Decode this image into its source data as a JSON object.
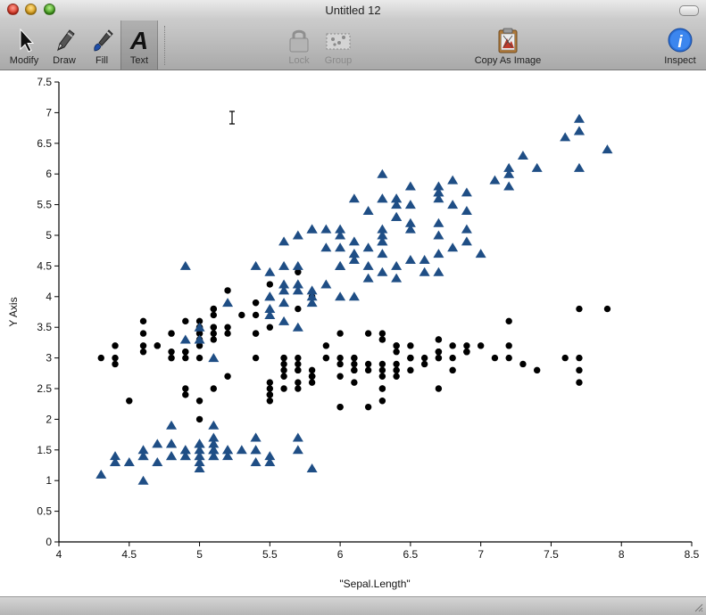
{
  "window": {
    "title": "Untitled 12"
  },
  "toolbar": {
    "modify_label": "Modify",
    "draw_label": "Draw",
    "fill_label": "Fill",
    "text_label": "Text",
    "lock_label": "Lock",
    "group_label": "Group",
    "copy_label": "Copy As Image",
    "inspect_label": "Inspect",
    "selected_tool": "Text"
  },
  "colors": {
    "series_triangle": "#1f4e85",
    "series_circle": "#000000"
  },
  "chart_data": {
    "type": "scatter",
    "xlabel": "\"Sepal.Length\"",
    "ylabel": "Y Axis",
    "xlim": [
      4,
      8.5
    ],
    "ylim": [
      0,
      7.5
    ],
    "xticks": [
      "4",
      "4.5",
      "5",
      "5.5",
      "6",
      "6.5",
      "7",
      "7.5",
      "8",
      "8.5"
    ],
    "yticks": [
      "0",
      "0.5",
      "1",
      "1.5",
      "2",
      "2.5",
      "3",
      "3.5",
      "4",
      "4.5",
      "5",
      "5.5",
      "6",
      "6.5",
      "7",
      "7.5"
    ],
    "grid": false,
    "series": [
      {
        "marker": "circle",
        "color": "#000000",
        "points": [
          [
            5.1,
            3.5
          ],
          [
            4.9,
            3.0
          ],
          [
            4.7,
            3.2
          ],
          [
            4.6,
            3.1
          ],
          [
            5.0,
            3.6
          ],
          [
            5.4,
            3.9
          ],
          [
            4.6,
            3.4
          ],
          [
            5.0,
            3.4
          ],
          [
            4.4,
            2.9
          ],
          [
            4.9,
            3.1
          ],
          [
            5.4,
            3.7
          ],
          [
            4.8,
            3.4
          ],
          [
            4.8,
            3.0
          ],
          [
            4.3,
            3.0
          ],
          [
            5.8,
            4.0
          ],
          [
            5.7,
            4.4
          ],
          [
            5.4,
            3.9
          ],
          [
            5.1,
            3.5
          ],
          [
            5.7,
            3.8
          ],
          [
            5.1,
            3.8
          ],
          [
            5.4,
            3.4
          ],
          [
            5.1,
            3.7
          ],
          [
            4.6,
            3.6
          ],
          [
            5.1,
            3.3
          ],
          [
            4.8,
            3.4
          ],
          [
            5.0,
            3.0
          ],
          [
            5.0,
            3.4
          ],
          [
            5.2,
            3.5
          ],
          [
            5.2,
            3.4
          ],
          [
            4.7,
            3.2
          ],
          [
            4.8,
            3.1
          ],
          [
            5.4,
            3.4
          ],
          [
            5.2,
            4.1
          ],
          [
            5.5,
            4.2
          ],
          [
            4.9,
            3.1
          ],
          [
            5.0,
            3.2
          ],
          [
            5.5,
            3.5
          ],
          [
            4.9,
            3.6
          ],
          [
            4.4,
            3.0
          ],
          [
            5.1,
            3.4
          ],
          [
            5.0,
            3.5
          ],
          [
            4.5,
            2.3
          ],
          [
            4.4,
            3.2
          ],
          [
            5.0,
            3.5
          ],
          [
            5.1,
            3.8
          ],
          [
            4.8,
            3.0
          ],
          [
            5.1,
            3.8
          ],
          [
            4.6,
            3.2
          ],
          [
            5.3,
            3.7
          ],
          [
            5.0,
            3.3
          ],
          [
            7.0,
            3.2
          ],
          [
            6.4,
            3.2
          ],
          [
            6.9,
            3.1
          ],
          [
            5.5,
            2.3
          ],
          [
            6.5,
            2.8
          ],
          [
            5.7,
            2.8
          ],
          [
            6.3,
            3.3
          ],
          [
            4.9,
            2.4
          ],
          [
            6.6,
            2.9
          ],
          [
            5.2,
            2.7
          ],
          [
            5.0,
            2.0
          ],
          [
            5.9,
            3.0
          ],
          [
            6.0,
            2.2
          ],
          [
            6.1,
            2.9
          ],
          [
            5.6,
            2.9
          ],
          [
            6.7,
            3.1
          ],
          [
            5.6,
            3.0
          ],
          [
            5.8,
            2.7
          ],
          [
            6.2,
            2.2
          ],
          [
            5.6,
            2.5
          ],
          [
            5.9,
            3.2
          ],
          [
            6.1,
            2.8
          ],
          [
            6.3,
            2.5
          ],
          [
            6.1,
            2.8
          ],
          [
            6.4,
            2.9
          ],
          [
            6.6,
            3.0
          ],
          [
            6.8,
            2.8
          ],
          [
            6.7,
            3.0
          ],
          [
            6.0,
            2.9
          ],
          [
            5.7,
            2.6
          ],
          [
            5.5,
            2.4
          ],
          [
            5.5,
            2.4
          ],
          [
            5.8,
            2.7
          ],
          [
            6.0,
            2.7
          ],
          [
            5.4,
            3.0
          ],
          [
            6.0,
            3.4
          ],
          [
            6.7,
            3.1
          ],
          [
            6.3,
            2.3
          ],
          [
            5.6,
            3.0
          ],
          [
            5.5,
            2.5
          ],
          [
            5.5,
            2.6
          ],
          [
            6.1,
            3.0
          ],
          [
            5.8,
            2.6
          ],
          [
            5.0,
            2.3
          ],
          [
            5.6,
            2.7
          ],
          [
            5.7,
            3.0
          ],
          [
            5.7,
            2.9
          ],
          [
            6.2,
            2.9
          ],
          [
            5.1,
            2.5
          ],
          [
            5.7,
            2.8
          ],
          [
            6.3,
            3.3
          ],
          [
            5.8,
            2.7
          ],
          [
            7.1,
            3.0
          ],
          [
            6.3,
            2.9
          ],
          [
            6.5,
            3.0
          ],
          [
            7.6,
            3.0
          ],
          [
            4.9,
            2.5
          ],
          [
            7.3,
            2.9
          ],
          [
            6.7,
            2.5
          ],
          [
            7.2,
            3.6
          ],
          [
            6.5,
            3.2
          ],
          [
            6.4,
            2.7
          ],
          [
            6.8,
            3.0
          ],
          [
            5.7,
            2.5
          ],
          [
            5.8,
            2.8
          ],
          [
            6.4,
            3.2
          ],
          [
            6.5,
            3.0
          ],
          [
            7.7,
            3.8
          ],
          [
            7.7,
            2.6
          ],
          [
            6.0,
            2.2
          ],
          [
            6.9,
            3.2
          ],
          [
            5.6,
            2.8
          ],
          [
            7.7,
            2.8
          ],
          [
            6.3,
            2.7
          ],
          [
            6.7,
            3.3
          ],
          [
            7.2,
            3.2
          ],
          [
            6.2,
            2.8
          ],
          [
            6.1,
            3.0
          ],
          [
            6.4,
            2.8
          ],
          [
            7.2,
            3.0
          ],
          [
            7.4,
            2.8
          ],
          [
            7.9,
            3.8
          ],
          [
            6.4,
            2.8
          ],
          [
            6.3,
            2.8
          ],
          [
            6.1,
            2.6
          ],
          [
            7.7,
            3.0
          ],
          [
            6.3,
            3.4
          ],
          [
            6.4,
            3.1
          ],
          [
            6.0,
            3.0
          ],
          [
            6.9,
            3.1
          ],
          [
            6.7,
            3.1
          ],
          [
            6.9,
            3.1
          ],
          [
            5.8,
            2.7
          ],
          [
            6.8,
            3.2
          ],
          [
            6.7,
            3.3
          ],
          [
            6.7,
            3.0
          ],
          [
            6.3,
            2.5
          ],
          [
            6.5,
            3.0
          ],
          [
            6.2,
            3.4
          ],
          [
            5.9,
            3.0
          ]
        ]
      },
      {
        "marker": "triangle",
        "color": "#1f4e85",
        "points": [
          [
            5.1,
            1.4
          ],
          [
            4.9,
            1.4
          ],
          [
            4.7,
            1.3
          ],
          [
            4.6,
            1.5
          ],
          [
            5.0,
            1.4
          ],
          [
            5.4,
            1.7
          ],
          [
            4.6,
            1.4
          ],
          [
            5.0,
            1.5
          ],
          [
            4.4,
            1.4
          ],
          [
            4.9,
            1.5
          ],
          [
            5.4,
            1.5
          ],
          [
            4.8,
            1.6
          ],
          [
            4.8,
            1.4
          ],
          [
            4.3,
            1.1
          ],
          [
            5.8,
            1.2
          ],
          [
            5.7,
            1.5
          ],
          [
            5.4,
            1.3
          ],
          [
            5.1,
            1.4
          ],
          [
            5.7,
            1.7
          ],
          [
            5.1,
            1.5
          ],
          [
            5.4,
            1.7
          ],
          [
            5.1,
            1.5
          ],
          [
            4.6,
            1.0
          ],
          [
            5.1,
            1.7
          ],
          [
            4.8,
            1.9
          ],
          [
            5.0,
            1.6
          ],
          [
            5.0,
            1.6
          ],
          [
            5.2,
            1.5
          ],
          [
            5.2,
            1.4
          ],
          [
            4.7,
            1.6
          ],
          [
            4.8,
            1.6
          ],
          [
            5.4,
            1.5
          ],
          [
            5.2,
            1.5
          ],
          [
            5.5,
            1.4
          ],
          [
            4.9,
            1.5
          ],
          [
            5.0,
            1.2
          ],
          [
            5.5,
            1.3
          ],
          [
            4.9,
            1.4
          ],
          [
            4.4,
            1.3
          ],
          [
            5.1,
            1.5
          ],
          [
            5.0,
            1.3
          ],
          [
            4.5,
            1.3
          ],
          [
            4.4,
            1.3
          ],
          [
            5.0,
            1.6
          ],
          [
            5.1,
            1.9
          ],
          [
            4.8,
            1.4
          ],
          [
            5.1,
            1.6
          ],
          [
            4.6,
            1.4
          ],
          [
            5.3,
            1.5
          ],
          [
            5.0,
            1.4
          ],
          [
            7.0,
            4.7
          ],
          [
            6.4,
            4.5
          ],
          [
            6.9,
            4.9
          ],
          [
            5.5,
            4.0
          ],
          [
            6.5,
            4.6
          ],
          [
            5.7,
            4.5
          ],
          [
            6.3,
            4.7
          ],
          [
            4.9,
            3.3
          ],
          [
            6.6,
            4.6
          ],
          [
            5.2,
            3.9
          ],
          [
            5.0,
            3.5
          ],
          [
            5.9,
            4.2
          ],
          [
            6.0,
            4.0
          ],
          [
            6.1,
            4.7
          ],
          [
            5.6,
            3.6
          ],
          [
            6.7,
            4.4
          ],
          [
            5.6,
            4.5
          ],
          [
            5.8,
            4.1
          ],
          [
            6.2,
            4.5
          ],
          [
            5.6,
            3.9
          ],
          [
            5.9,
            4.8
          ],
          [
            6.1,
            4.0
          ],
          [
            6.3,
            4.9
          ],
          [
            6.1,
            4.7
          ],
          [
            6.4,
            4.3
          ],
          [
            6.6,
            4.4
          ],
          [
            6.8,
            4.8
          ],
          [
            6.7,
            5.0
          ],
          [
            6.0,
            4.5
          ],
          [
            5.7,
            3.5
          ],
          [
            5.5,
            3.8
          ],
          [
            5.5,
            3.7
          ],
          [
            5.8,
            3.9
          ],
          [
            6.0,
            5.1
          ],
          [
            5.4,
            4.5
          ],
          [
            6.0,
            4.5
          ],
          [
            6.7,
            4.7
          ],
          [
            6.3,
            4.4
          ],
          [
            5.6,
            4.1
          ],
          [
            5.5,
            4.0
          ],
          [
            5.5,
            4.4
          ],
          [
            6.1,
            4.6
          ],
          [
            5.8,
            4.0
          ],
          [
            5.0,
            3.3
          ],
          [
            5.6,
            4.2
          ],
          [
            5.7,
            4.2
          ],
          [
            5.7,
            4.2
          ],
          [
            6.2,
            4.3
          ],
          [
            5.1,
            3.0
          ],
          [
            5.7,
            4.1
          ],
          [
            6.3,
            6.0
          ],
          [
            5.8,
            5.1
          ],
          [
            7.1,
            5.9
          ],
          [
            6.3,
            5.6
          ],
          [
            6.5,
            5.8
          ],
          [
            7.6,
            6.6
          ],
          [
            4.9,
            4.5
          ],
          [
            7.3,
            6.3
          ],
          [
            6.7,
            5.8
          ],
          [
            7.2,
            6.1
          ],
          [
            6.5,
            5.1
          ],
          [
            6.4,
            5.3
          ],
          [
            6.8,
            5.5
          ],
          [
            5.7,
            5.0
          ],
          [
            5.8,
            5.1
          ],
          [
            6.4,
            5.3
          ],
          [
            6.5,
            5.5
          ],
          [
            7.7,
            6.7
          ],
          [
            7.7,
            6.9
          ],
          [
            6.0,
            5.0
          ],
          [
            6.9,
            5.7
          ],
          [
            5.6,
            4.9
          ],
          [
            7.7,
            6.7
          ],
          [
            6.3,
            4.9
          ],
          [
            6.7,
            5.7
          ],
          [
            7.2,
            6.0
          ],
          [
            6.2,
            4.8
          ],
          [
            6.1,
            4.9
          ],
          [
            6.4,
            5.6
          ],
          [
            7.2,
            5.8
          ],
          [
            7.4,
            6.1
          ],
          [
            7.9,
            6.4
          ],
          [
            6.4,
            5.6
          ],
          [
            6.3,
            5.1
          ],
          [
            6.1,
            5.6
          ],
          [
            7.7,
            6.1
          ],
          [
            6.3,
            5.6
          ],
          [
            6.4,
            5.5
          ],
          [
            6.0,
            4.8
          ],
          [
            6.9,
            5.4
          ],
          [
            6.7,
            5.6
          ],
          [
            6.9,
            5.1
          ],
          [
            5.8,
            5.1
          ],
          [
            6.8,
            5.9
          ],
          [
            6.7,
            5.7
          ],
          [
            6.7,
            5.2
          ],
          [
            6.3,
            5.0
          ],
          [
            6.5,
            5.2
          ],
          [
            6.2,
            5.4
          ],
          [
            5.9,
            5.1
          ]
        ]
      }
    ]
  }
}
